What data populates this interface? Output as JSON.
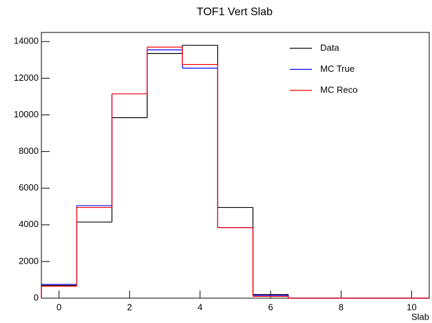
{
  "chart_data": {
    "type": "histogram",
    "title": "TOF1 Vert Slab",
    "x_label": "Slab",
    "bins": [
      -0.5,
      0.5,
      1.5,
      2.5,
      3.5,
      4.5,
      5.5,
      6.5,
      7.5,
      8.5,
      9.5,
      10.5
    ],
    "series": [
      {
        "name": "Data",
        "color": "#000000",
        "values": [
          700,
          4150,
          9850,
          13350,
          13800,
          4950,
          200,
          0,
          0,
          0,
          0
        ]
      },
      {
        "name": "MC True",
        "color": "#0000ff",
        "values": [
          750,
          5050,
          11150,
          13550,
          12550,
          3850,
          150,
          0,
          0,
          0,
          0
        ]
      },
      {
        "name": "MC Reco",
        "color": "#ff0000",
        "values": [
          650,
          4950,
          11150,
          13700,
          12750,
          3850,
          100,
          0,
          0,
          0,
          0
        ]
      }
    ],
    "xlim": [
      -0.5,
      10.5
    ],
    "ylim": [
      0,
      14500
    ],
    "xticks": [
      0,
      2,
      4,
      6,
      8,
      10
    ],
    "yticks": [
      0,
      2000,
      4000,
      6000,
      8000,
      10000,
      12000,
      14000
    ],
    "legend": "top right"
  }
}
